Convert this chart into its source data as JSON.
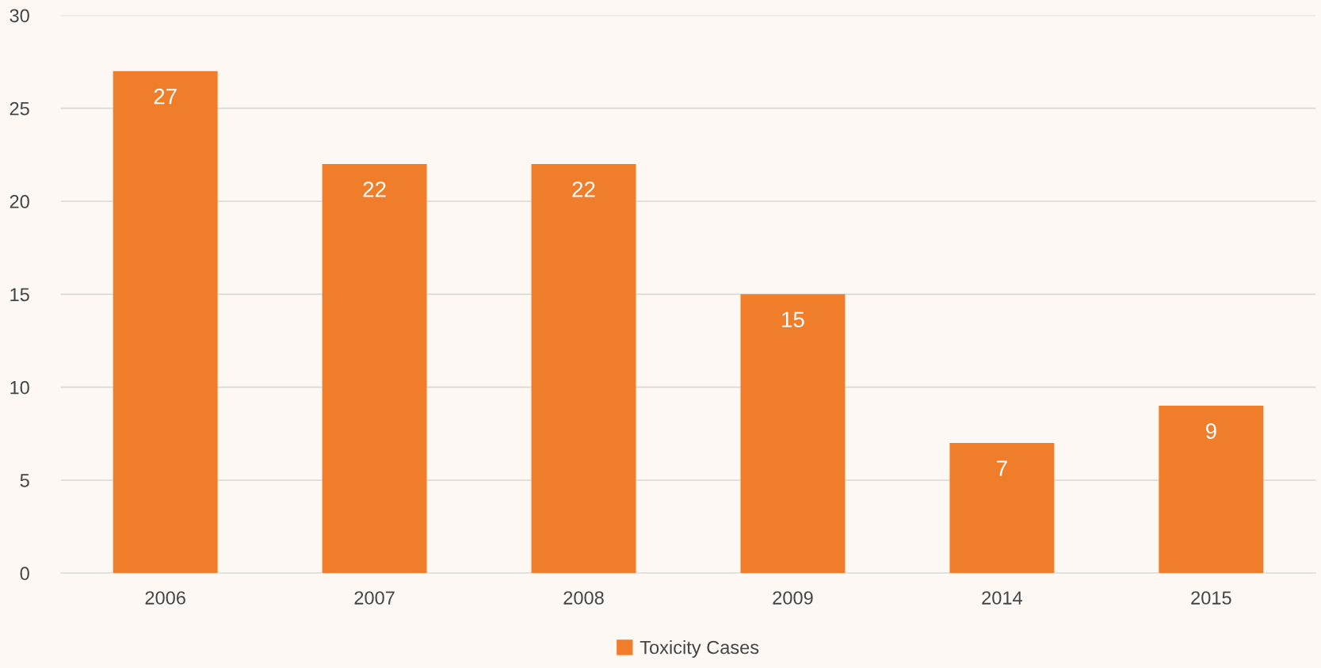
{
  "chart_data": {
    "type": "bar",
    "categories": [
      "2006",
      "2007",
      "2008",
      "2009",
      "2014",
      "2015"
    ],
    "series": [
      {
        "name": "Toxicity Cases",
        "color": "#f07d2a",
        "values": [
          27,
          22,
          22,
          15,
          7,
          9
        ]
      }
    ],
    "ylim": [
      0,
      30
    ],
    "yticks": [
      0,
      5,
      10,
      15,
      20,
      25,
      30
    ],
    "grid": "y",
    "legend": "bottom",
    "data_labels": true
  }
}
